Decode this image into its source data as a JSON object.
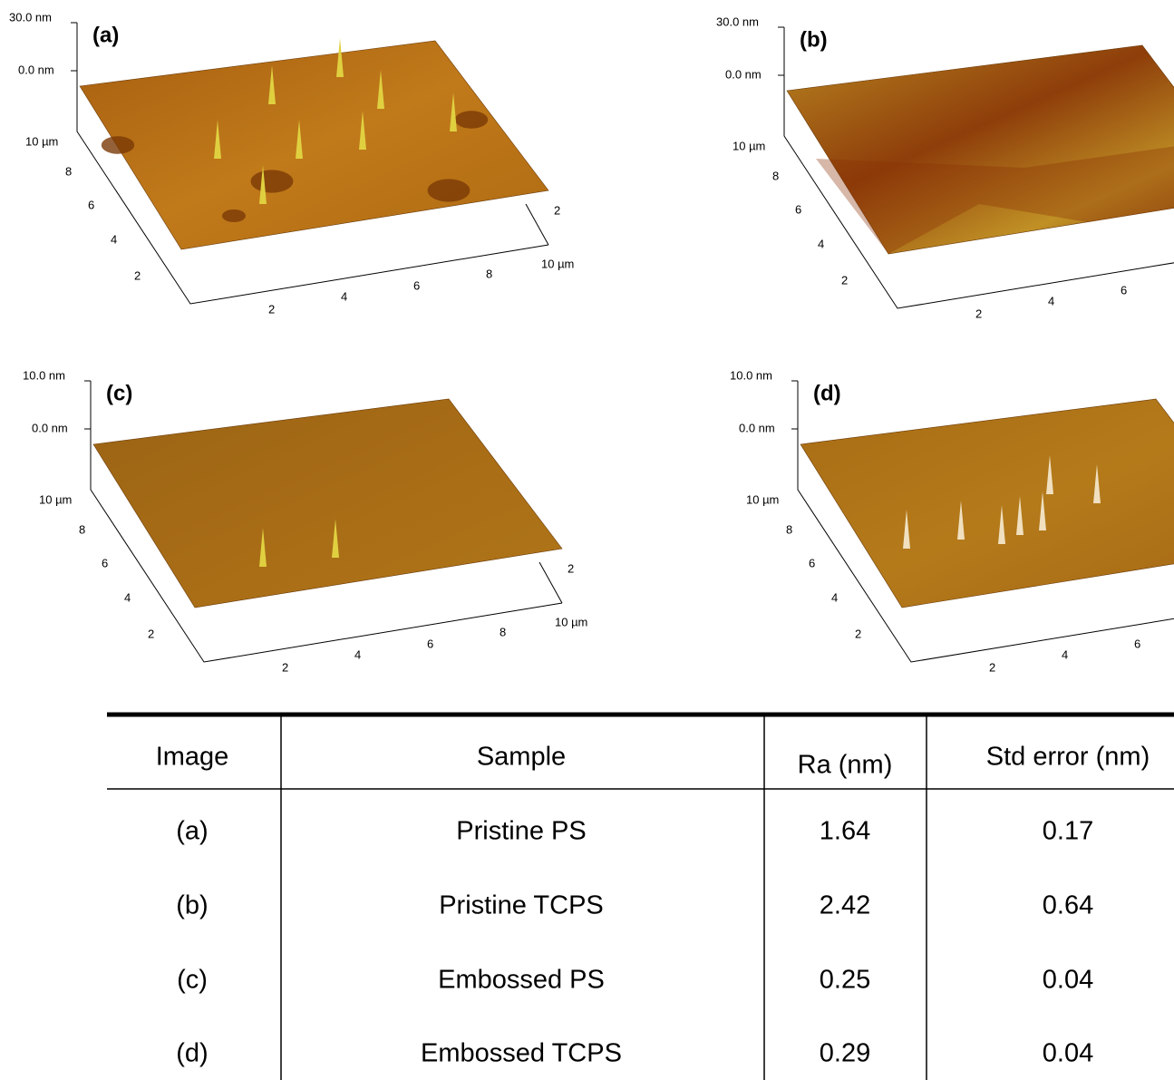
{
  "panels": [
    {
      "label": "(a)",
      "z_max": "30.0 nm",
      "z_zero": "0.0 nm",
      "y_axis": [
        "10 µm",
        "8",
        "6",
        "4",
        "2"
      ],
      "x_axis": [
        "2",
        "4",
        "6",
        "8",
        "10 µm"
      ],
      "side_tick": "2"
    },
    {
      "label": "(b)",
      "z_max": "30.0 nm",
      "z_zero": "0.0 nm",
      "y_axis": [
        "10 µm",
        "8",
        "6",
        "4",
        "2"
      ],
      "x_axis": [
        "2",
        "4",
        "6"
      ]
    },
    {
      "label": "(c)",
      "z_max": "10.0 nm",
      "z_zero": "0.0 nm",
      "y_axis": [
        "10 µm",
        "8",
        "6",
        "4",
        "2"
      ],
      "x_axis": [
        "2",
        "4",
        "6",
        "8",
        "10 µm"
      ],
      "side_tick": "2"
    },
    {
      "label": "(d)",
      "z_max": "10.0 nm",
      "z_zero": "0.0 nm",
      "y_axis": [
        "10 µm",
        "8",
        "6",
        "4",
        "2"
      ],
      "x_axis": [
        "2",
        "4",
        "6"
      ]
    }
  ],
  "table": {
    "header": [
      "Image",
      "Sample",
      "Ra (nm)",
      "Std error (nm)"
    ],
    "rows": [
      [
        "(a)",
        "Pristine PS",
        "1.64",
        "0.17"
      ],
      [
        "(b)",
        "Pristine TCPS",
        "2.42",
        "0.64"
      ],
      [
        "(c)",
        "Embossed PS",
        "0.25",
        "0.04"
      ],
      [
        "(d)",
        "Embossed TCPS",
        "0.29",
        "0.04"
      ]
    ]
  }
}
